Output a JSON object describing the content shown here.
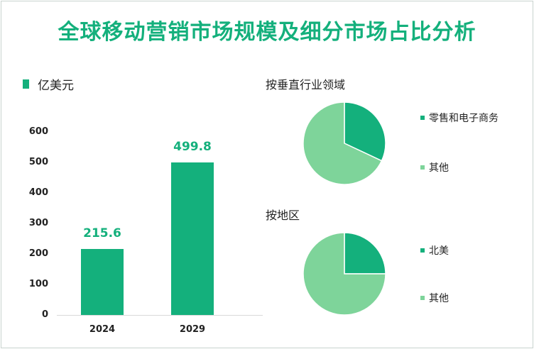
{
  "title": "全球移动营销市场规模及细分市场占比分析",
  "colors": {
    "primary": "#14b07c",
    "secondary": "#7ed49a"
  },
  "chart_data": [
    {
      "type": "bar",
      "legend": "亿美元",
      "categories": [
        "2024",
        "2029"
      ],
      "values": [
        215.6,
        499.8
      ],
      "value_labels": [
        "215.6",
        "499.8"
      ],
      "ylim": [
        0,
        600
      ],
      "yticks": [
        "0",
        "100",
        "200",
        "300",
        "400",
        "500",
        "600"
      ],
      "grid": false
    },
    {
      "type": "pie",
      "title": "按垂直行业领域",
      "slices": [
        {
          "label": "零售和电子商务",
          "value": 32,
          "color": "#14b07c"
        },
        {
          "label": "其他",
          "value": 68,
          "color": "#7ed49a"
        }
      ]
    },
    {
      "type": "pie",
      "title": "按地区",
      "slices": [
        {
          "label": "北美",
          "value": 25,
          "color": "#14b07c"
        },
        {
          "label": "其他",
          "value": 75,
          "color": "#7ed49a"
        }
      ]
    }
  ]
}
